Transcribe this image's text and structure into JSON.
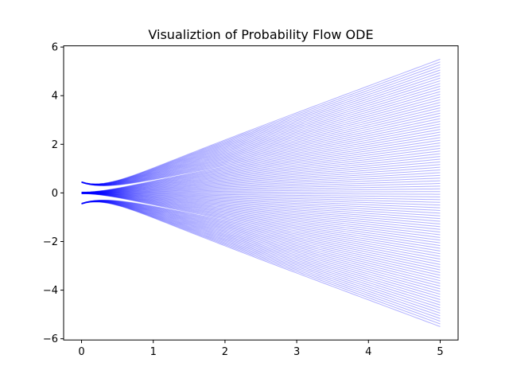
{
  "chart_data": {
    "type": "line",
    "title": "Visualiztion of Probability Flow ODE",
    "xlabel": "",
    "ylabel": "",
    "xlim": [
      -0.25,
      5.25
    ],
    "ylim": [
      -6.05,
      6.05
    ],
    "x_ticks": [
      0,
      1,
      2,
      3,
      4,
      5
    ],
    "y_ticks": [
      -6,
      -4,
      -2,
      0,
      2,
      4,
      6
    ],
    "x_tick_labels": [
      "0",
      "1",
      "2",
      "3",
      "4",
      "5"
    ],
    "y_tick_labels": [
      "−6",
      "−4",
      "−2",
      "0",
      "2",
      "4",
      "6"
    ],
    "grid": false,
    "legend": "none",
    "line_color": "#0000ff",
    "line_opacity": 0.3,
    "trajectory_count": 100,
    "t_range": [
      0,
      5
    ],
    "start_value_range": [
      -0.4,
      0.4
    ],
    "end_value_range": [
      -5.5,
      5.5
    ]
  }
}
